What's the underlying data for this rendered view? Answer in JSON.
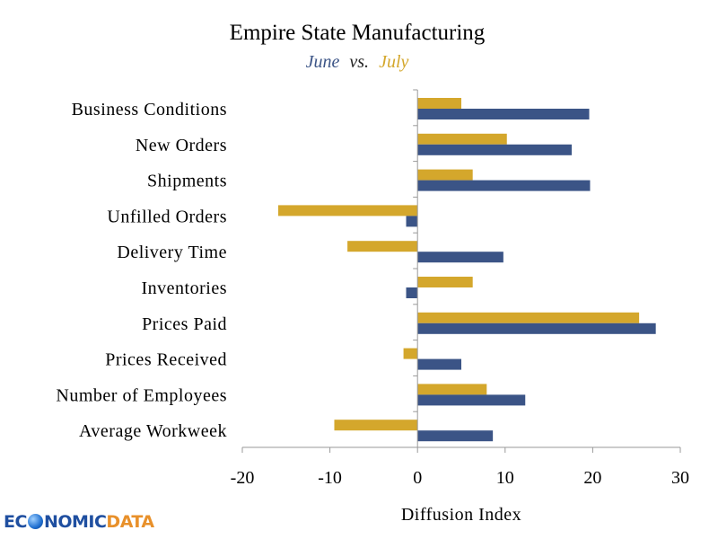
{
  "chart_data": {
    "type": "bar",
    "orientation": "horizontal",
    "title": "Empire State Manufacturing",
    "subtitle": {
      "series_a": "June",
      "separator": "vs.",
      "series_b": "July"
    },
    "categories": [
      "Business Conditions",
      "New Orders",
      "Shipments",
      "Unfilled Orders",
      "Delivery Time",
      "Inventories",
      "Prices Paid",
      "Prices Received",
      "Number of Employees",
      "Average Workweek"
    ],
    "series": [
      {
        "name": "July",
        "color": "#d4a72c",
        "values": [
          5.0,
          10.2,
          6.3,
          -15.9,
          -8.0,
          6.3,
          25.3,
          -1.6,
          7.9,
          -9.5
        ]
      },
      {
        "name": "June",
        "color": "#3b5486",
        "values": [
          19.6,
          17.6,
          19.7,
          -1.3,
          9.8,
          -1.3,
          27.2,
          5.0,
          12.3,
          8.6
        ]
      }
    ],
    "xlabel": "Diffusion Index",
    "xlim": [
      -20,
      30
    ],
    "xticks": [
      "-20",
      "-10",
      "0",
      "10",
      "20",
      "30"
    ],
    "grid": false,
    "legend": "none"
  },
  "branding": {
    "logo_part1": "EC",
    "logo_part2": "NOMIC",
    "logo_part3": "DATA"
  }
}
